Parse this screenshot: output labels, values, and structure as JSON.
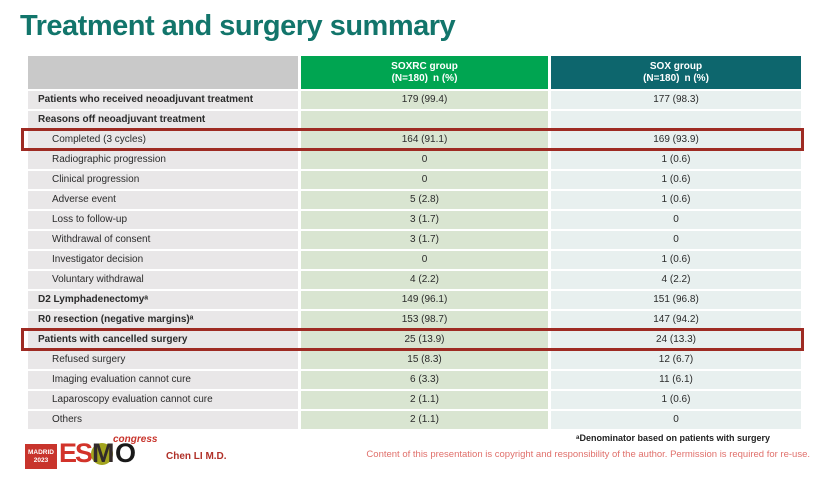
{
  "slide": {
    "title": "Treatment and surgery summary"
  },
  "table": {
    "header": {
      "group1_line1": "SOXRC group",
      "group1_line2": "(N=180) n (%)",
      "group2_line1": "SOX group",
      "group2_line2": "(N=180) n (%)"
    },
    "rows": [
      {
        "label": "Patients who received neoadjuvant treatment",
        "soxrc": "179 (99.4)",
        "sox": "177 (98.3)",
        "bold": true,
        "indent": false,
        "highlight": false
      },
      {
        "label": "Reasons off neoadjuvant treatment",
        "soxrc": "",
        "sox": "",
        "bold": true,
        "indent": false,
        "highlight": false
      },
      {
        "label": "Completed (3 cycles)",
        "soxrc": "164 (91.1)",
        "sox": "169 (93.9)",
        "bold": false,
        "indent": true,
        "highlight": true
      },
      {
        "label": "Radiographic progression",
        "soxrc": "0",
        "sox": "1 (0.6)",
        "bold": false,
        "indent": true,
        "highlight": false
      },
      {
        "label": "Clinical progression",
        "soxrc": "0",
        "sox": "1 (0.6)",
        "bold": false,
        "indent": true,
        "highlight": false
      },
      {
        "label": "Adverse event",
        "soxrc": "5 (2.8)",
        "sox": "1 (0.6)",
        "bold": false,
        "indent": true,
        "highlight": false
      },
      {
        "label": "Loss to follow-up",
        "soxrc": "3 (1.7)",
        "sox": "0",
        "bold": false,
        "indent": true,
        "highlight": false
      },
      {
        "label": "Withdrawal of consent",
        "soxrc": "3 (1.7)",
        "sox": "0",
        "bold": false,
        "indent": true,
        "highlight": false
      },
      {
        "label": "Investigator decision",
        "soxrc": "0",
        "sox": "1 (0.6)",
        "bold": false,
        "indent": true,
        "highlight": false
      },
      {
        "label": "Voluntary withdrawal",
        "soxrc": "4 (2.2)",
        "sox": "4 (2.2)",
        "bold": false,
        "indent": true,
        "highlight": false
      },
      {
        "label": "D2 Lymphadenectomyᵃ",
        "soxrc": "149 (96.1)",
        "sox": "151 (96.8)",
        "bold": true,
        "indent": false,
        "highlight": false
      },
      {
        "label": "R0 resection (negative margins)ᵃ",
        "soxrc": "153 (98.7)",
        "sox": "147 (94.2)",
        "bold": true,
        "indent": false,
        "highlight": false
      },
      {
        "label": "Patients with cancelled surgery",
        "soxrc": "25 (13.9)",
        "sox": "24 (13.3)",
        "bold": true,
        "indent": false,
        "highlight": true
      },
      {
        "label": "Refused surgery",
        "soxrc": "15 (8.3)",
        "sox": "12 (6.7)",
        "bold": false,
        "indent": true,
        "highlight": false
      },
      {
        "label": "Imaging evaluation cannot cure",
        "soxrc": "6 (3.3)",
        "sox": "11 (6.1)",
        "bold": false,
        "indent": true,
        "highlight": false
      },
      {
        "label": "Laparoscopy evaluation cannot cure",
        "soxrc": "2 (1.1)",
        "sox": "1 (0.6)",
        "bold": false,
        "indent": true,
        "highlight": false
      },
      {
        "label": "Others",
        "soxrc": "2 (1.1)",
        "sox": "0",
        "bold": false,
        "indent": true,
        "highlight": false
      }
    ]
  },
  "footer": {
    "footnote": "ᵃDenominator based on patients with surgery",
    "author": "Chen LI M.D.",
    "copyright": "Content of this presentation is copyright and responsibility of the author. Permission is required for re-use.",
    "logo": {
      "madrid_line1": "MADRID",
      "madrid_line2": "2023",
      "esmo_es": "ES",
      "esmo_m": "M",
      "esmo_o": "O",
      "congress": "congress"
    }
  },
  "colors": {
    "title": "#12756b",
    "header_green": "#00a551",
    "header_teal": "#0d666d",
    "highlight_border": "#9e2b23",
    "copyright_text": "#e0706b"
  }
}
